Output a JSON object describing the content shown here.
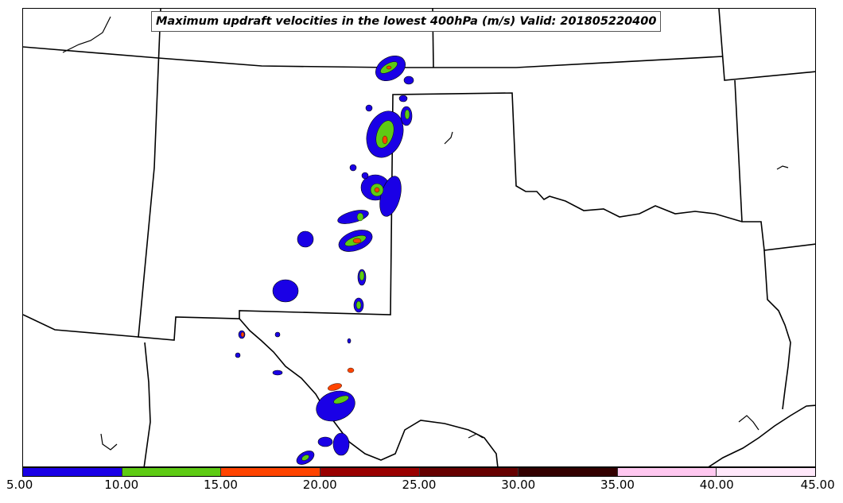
{
  "title": "Maximum updraft velocities in the lowest 400hPa (m/s) Valid: 201805220400",
  "colorbar": {
    "colors": [
      "#1a00e6",
      "#5ecb14",
      "#ff4400",
      "#990000",
      "#660000",
      "#330000",
      "#ffc8f0",
      "#ffe8fa"
    ],
    "ticks": [
      "5.00",
      "10.00",
      "15.00",
      "20.00",
      "25.00",
      "30.00",
      "35.00",
      "40.00",
      "45.00"
    ]
  },
  "map": {
    "border_color": "#000000",
    "cell_colors": {
      "low": "#1a00e6",
      "mid": "#5ecb14",
      "high": "#ff4400"
    }
  }
}
